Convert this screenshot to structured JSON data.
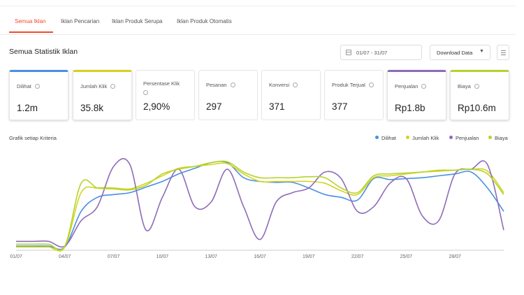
{
  "tabs": [
    {
      "label": "Semua Iklan",
      "active": true
    },
    {
      "label": "Iklan Pencarian",
      "active": false
    },
    {
      "label": "Iklan Produk Serupa",
      "active": false
    },
    {
      "label": "Iklan Produk Otomatis",
      "active": false
    }
  ],
  "section_title": "Semua Statistik Iklan",
  "date_range": "01/07 - 31/07",
  "download_label": "Download Data",
  "metrics": [
    {
      "label": "Dilihat",
      "value": "1.2m",
      "selected": true,
      "color": "#4a90e2"
    },
    {
      "label": "Jumlah Klik",
      "value": "35.8k",
      "selected": true,
      "color": "#d4d420"
    },
    {
      "label": "Persentase Klik",
      "value": "2,90%",
      "selected": false
    },
    {
      "label": "Pesanan",
      "value": "297",
      "selected": false
    },
    {
      "label": "Konversi",
      "value": "371",
      "selected": false
    },
    {
      "label": "Produk Terjual",
      "value": "377",
      "selected": false
    },
    {
      "label": "Penjualan",
      "value": "Rp1.8b",
      "selected": true,
      "color": "#8e6bb8"
    },
    {
      "label": "Biaya",
      "value": "Rp10.6m",
      "selected": true,
      "color": "#b5d42c"
    }
  ],
  "chart_title": "Grafik setiap Kriteria",
  "chart_data": {
    "type": "line",
    "x": [
      "01/07",
      "02/07",
      "03/07",
      "04/07",
      "05/07",
      "06/07",
      "07/07",
      "08/07",
      "09/07",
      "10/07",
      "11/07",
      "12/07",
      "13/07",
      "14/07",
      "15/07",
      "16/07",
      "17/07",
      "18/07",
      "19/07",
      "20/07",
      "21/07",
      "22/07",
      "23/07",
      "24/07",
      "25/07",
      "26/07",
      "27/07",
      "28/07",
      "29/07",
      "30/07",
      "31/07"
    ],
    "x_tick_labels": [
      "01/07",
      "04/07",
      "07/07",
      "10/07",
      "13/07",
      "16/07",
      "19/07",
      "22/07",
      "25/07",
      "28/07"
    ],
    "ylim": [
      0,
      100
    ],
    "grid": false,
    "legend_position": "top-right",
    "series": [
      {
        "name": "Dilihat",
        "color": "#4a90e2",
        "values": [
          3,
          3,
          3,
          2,
          40,
          55,
          58,
          60,
          66,
          72,
          80,
          86,
          92,
          92,
          76,
          72,
          71,
          71,
          65,
          58,
          55,
          52,
          75,
          74,
          75,
          76,
          78,
          80,
          82,
          65,
          40
        ]
      },
      {
        "name": "Jumlah Klik",
        "color": "#d4d420",
        "values": [
          2,
          2,
          2,
          2,
          60,
          65,
          65,
          64,
          70,
          78,
          86,
          88,
          90,
          91,
          80,
          72,
          72,
          72,
          72,
          70,
          62,
          58,
          76,
          78,
          80,
          82,
          84,
          84,
          85,
          83,
          60
        ]
      },
      {
        "name": "Penjualan",
        "color": "#8e6bb8",
        "values": [
          8,
          8,
          8,
          3,
          30,
          45,
          88,
          90,
          20,
          55,
          85,
          45,
          50,
          85,
          45,
          10,
          50,
          60,
          65,
          82,
          75,
          40,
          45,
          70,
          75,
          35,
          30,
          80,
          85,
          90,
          20
        ]
      },
      {
        "name": "Biaya",
        "color": "#b5d42c",
        "values": [
          5,
          5,
          5,
          3,
          70,
          65,
          64,
          63,
          68,
          80,
          85,
          88,
          92,
          93,
          82,
          76,
          76,
          76,
          77,
          76,
          65,
          60,
          78,
          80,
          81,
          82,
          83,
          84,
          85,
          80,
          58
        ]
      }
    ]
  }
}
